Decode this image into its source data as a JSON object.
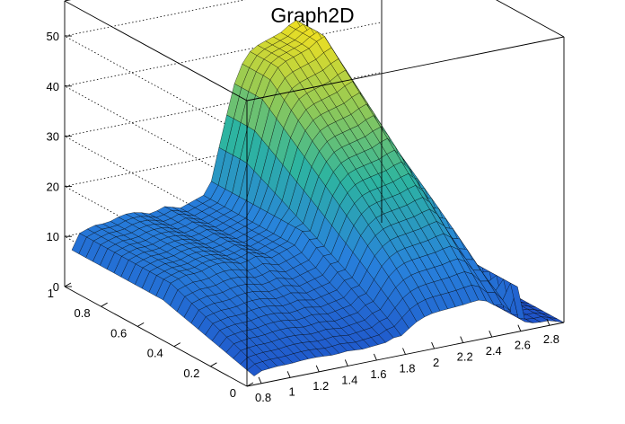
{
  "chart_data": {
    "type": "surface",
    "title": "Graph2D",
    "xlabel": "",
    "ylabel": "",
    "zlabel": "",
    "xlim": [
      0.7,
      2.9
    ],
    "ylim": [
      0,
      1
    ],
    "zlim": [
      0,
      57
    ],
    "x_ticks": [
      "0.8",
      "1",
      "1.2",
      "1.4",
      "1.6",
      "1.8",
      "2",
      "2.2",
      "2.4",
      "2.6",
      "2.8"
    ],
    "y_ticks": [
      "0",
      "0.2",
      "0.4",
      "0.6",
      "0.8",
      "1"
    ],
    "z_ticks": [
      "0",
      "10",
      "20",
      "30",
      "40",
      "50"
    ],
    "grid": "dotted z gridlines on back walls",
    "colormap": "parula-like (blue to yellow)",
    "colors": {
      "low": "#2a5fcf",
      "mid": "#30b89c",
      "high": "#f9e21c",
      "mesh": "#000000"
    },
    "profile_x": [
      0.75,
      0.8,
      0.9,
      1.0,
      1.1,
      1.2,
      1.3,
      1.4,
      1.5,
      1.6,
      1.7,
      1.8,
      1.9,
      2.0,
      2.1,
      2.2,
      2.3,
      2.35,
      2.4,
      2.5,
      2.6,
      2.7,
      2.8,
      2.9
    ],
    "profile_z": [
      7,
      10,
      11,
      11,
      12,
      12,
      11,
      12,
      11,
      12,
      13,
      25,
      36,
      40,
      41,
      42,
      44,
      43,
      35,
      33,
      2,
      1,
      1,
      0
    ]
  }
}
